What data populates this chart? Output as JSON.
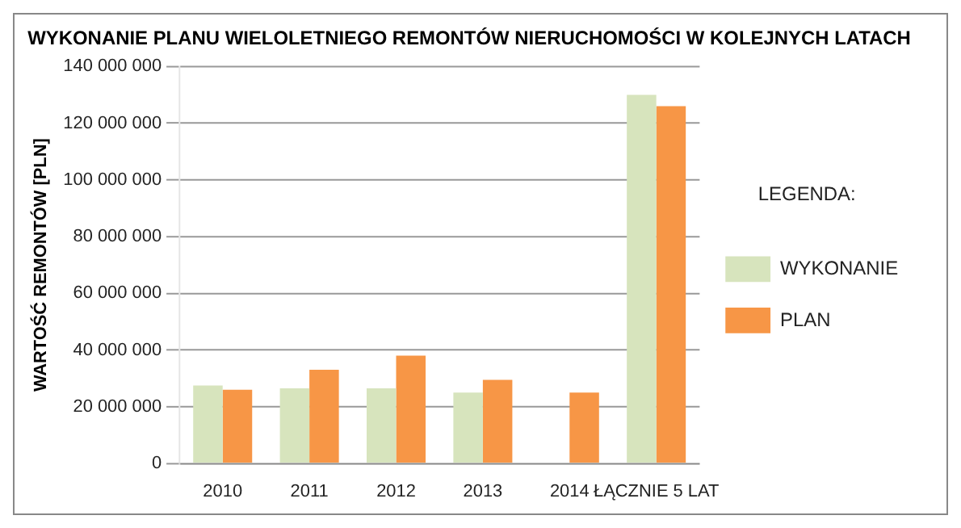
{
  "chart_data": {
    "type": "bar",
    "title": "WYKONANIE PLANU WIELOLETNIEGO REMONTÓW NIERUCHOMOŚCI W KOLEJNYCH LATACH",
    "ylabel": "WARTOŚĆ REMONTÓW [PLN]",
    "legend_title": "LEGENDA:",
    "categories": [
      "2010",
      "2011",
      "2012",
      "2013",
      "2014",
      "ŁĄCZNIE 5 LAT"
    ],
    "series": [
      {
        "name": "WYKONANIE",
        "color": "#d7e4bd",
        "values": [
          27500000,
          26500000,
          26500000,
          25000000,
          null,
          130000000
        ]
      },
      {
        "name": "PLAN",
        "color": "#f79646",
        "values": [
          26000000,
          33000000,
          38000000,
          29500000,
          25000000,
          126000000
        ]
      }
    ],
    "ylim": [
      0,
      140000000
    ],
    "yticks": [
      {
        "value": 0,
        "label": "0"
      },
      {
        "value": 20000000,
        "label": "20 000 000"
      },
      {
        "value": 40000000,
        "label": "40 000 000"
      },
      {
        "value": 60000000,
        "label": "60 000 000"
      },
      {
        "value": 80000000,
        "label": "80 000 000"
      },
      {
        "value": 100000000,
        "label": "100 000 000"
      },
      {
        "value": 120000000,
        "label": "120 000 000"
      },
      {
        "value": 140000000,
        "label": "140 000 000"
      }
    ],
    "grid": "y",
    "legend": "right"
  }
}
